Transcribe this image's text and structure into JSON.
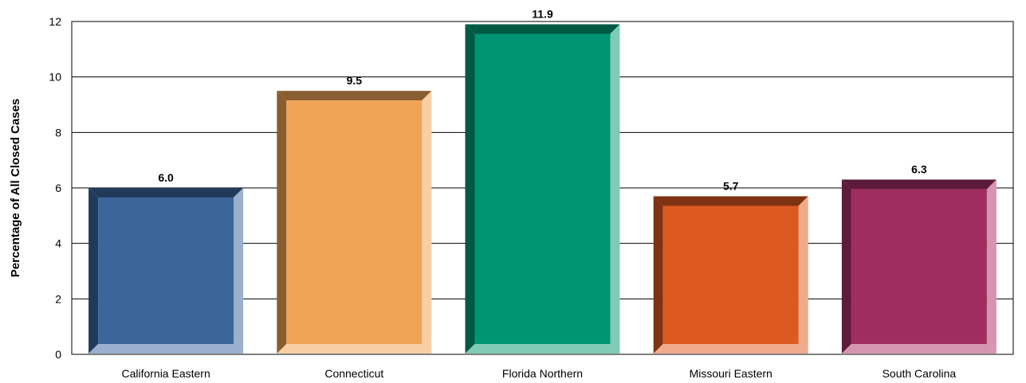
{
  "chart_data": {
    "type": "bar",
    "categories": [
      "California Eastern",
      "Connecticut",
      "Florida Northern",
      "Missouri Eastern",
      "South Carolina"
    ],
    "values": [
      6.0,
      9.5,
      11.9,
      5.7,
      6.3
    ],
    "value_labels": [
      "6.0",
      "9.5",
      "11.9",
      "5.7",
      "6.3"
    ],
    "ylabel": "Percentage of All Closed Cases",
    "ylim": [
      0,
      12
    ],
    "yticks": [
      0,
      2,
      4,
      6,
      8,
      10,
      12
    ],
    "grid": true,
    "colors": [
      {
        "face": "#3B6699",
        "dark": "#223A5A",
        "light": "#9AB0CE"
      },
      {
        "face": "#EFA455",
        "dark": "#8A5D30",
        "light": "#F8CFA4"
      },
      {
        "face": "#009572",
        "dark": "#005A43",
        "light": "#7FCBB5"
      },
      {
        "face": "#DC5A20",
        "dark": "#7E3212",
        "light": "#F0AB8C"
      },
      {
        "face": "#A02D60",
        "dark": "#5E1A3A",
        "light": "#D595B0"
      }
    ]
  }
}
